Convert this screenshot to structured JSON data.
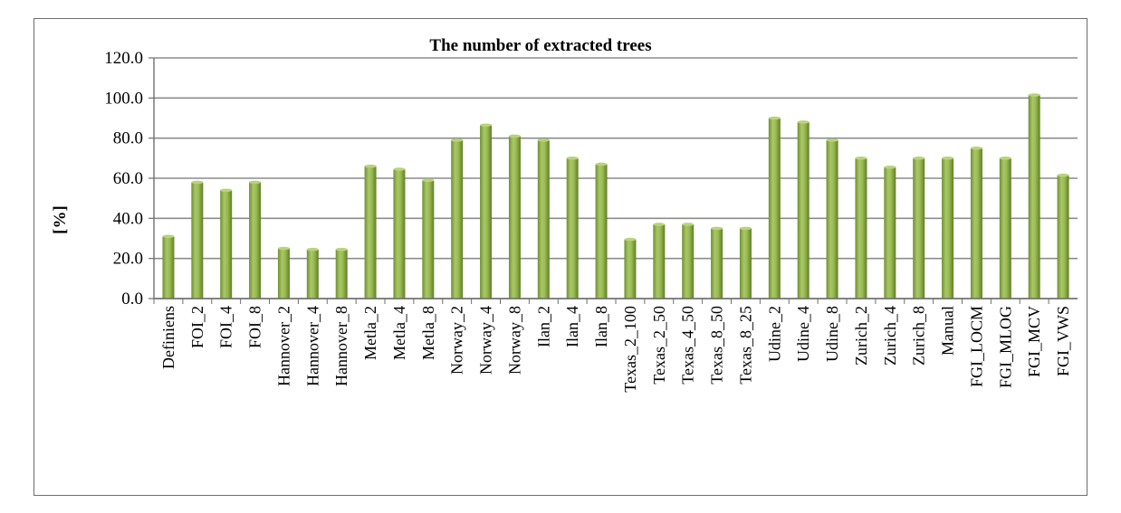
{
  "chart_data": {
    "type": "bar",
    "title": "The number of extracted trees",
    "xlabel": "",
    "ylabel": "[%]",
    "ylim": [
      0,
      120
    ],
    "yticks": [
      "0.0",
      "20.0",
      "40.0",
      "60.0",
      "80.0",
      "100.0",
      "120.0"
    ],
    "grid": true,
    "legend": "none",
    "bar_color": "#8fb04a",
    "categories": [
      "Definiens",
      "FOI_2",
      "FOI_4",
      "FOI_8",
      "Hannover_2",
      "Hannover_4",
      "Hannover_8",
      "Metla_2",
      "Metla_4",
      "Metla_8",
      "Norway_2",
      "Norway_4",
      "Norway_8",
      "Ilan_2",
      "Ilan_4",
      "Ilan_8",
      "Texas_2_100",
      "Texas_2_50",
      "Texas_4_50",
      "Texas_8_50",
      "Texas_8_25",
      "Udine_2",
      "Udine_4",
      "Udine_8",
      "Zurich_2",
      "Zurich_4",
      "Zurich_8",
      "Manual",
      "FGI_LOCM",
      "FGI_MLOG",
      "FGI_MCV",
      "FGI_VWS"
    ],
    "values": [
      31,
      58,
      54,
      58,
      25,
      24.5,
      24.5,
      66,
      64.5,
      59,
      79,
      86.5,
      81,
      79,
      70,
      67,
      29.5,
      37,
      37,
      35,
      35,
      90,
      88,
      79,
      70,
      65.5,
      70,
      70,
      75,
      70,
      101.5,
      61.5
    ]
  }
}
